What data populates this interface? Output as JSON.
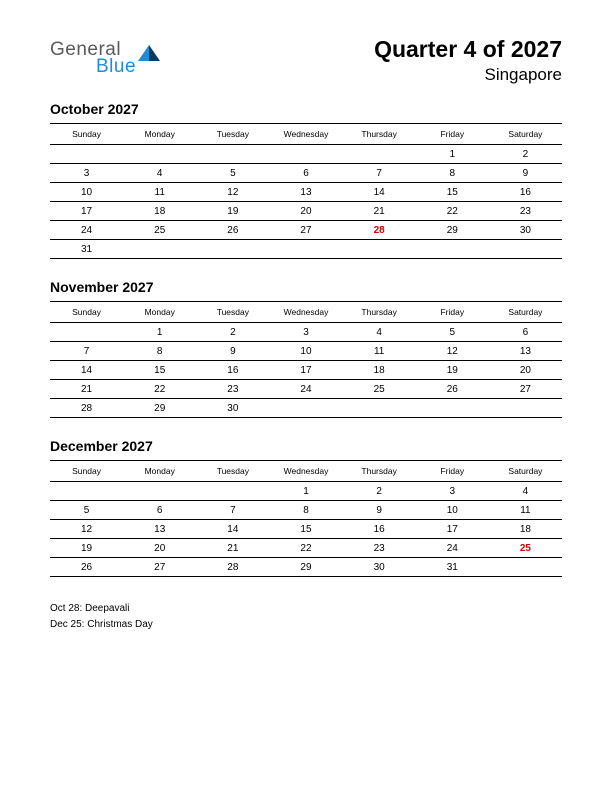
{
  "logo": {
    "text1": "General",
    "text2": "Blue",
    "triangle_color1": "#1f8dd6",
    "triangle_color2": "#0a3d62"
  },
  "header": {
    "title": "Quarter 4 of 2027",
    "subtitle": "Singapore"
  },
  "colors": {
    "background": "#ffffff",
    "text": "#000000",
    "holiday": "#d40000",
    "rule": "#000000",
    "logo_gray": "#5a5a5a",
    "logo_blue": "#1f8dd6"
  },
  "day_headers": [
    "Sunday",
    "Monday",
    "Tuesday",
    "Wednesday",
    "Thursday",
    "Friday",
    "Saturday"
  ],
  "months": [
    {
      "title": "October 2027",
      "weeks": [
        [
          "",
          "",
          "",
          "",
          "",
          "1",
          "2"
        ],
        [
          "3",
          "4",
          "5",
          "6",
          "7",
          "8",
          "9"
        ],
        [
          "10",
          "11",
          "12",
          "13",
          "14",
          "15",
          "16"
        ],
        [
          "17",
          "18",
          "19",
          "20",
          "21",
          "22",
          "23"
        ],
        [
          "24",
          "25",
          "26",
          "27",
          "28",
          "29",
          "30"
        ],
        [
          "31",
          "",
          "",
          "",
          "",
          "",
          ""
        ]
      ],
      "holidays": [
        "28"
      ]
    },
    {
      "title": "November 2027",
      "weeks": [
        [
          "",
          "1",
          "2",
          "3",
          "4",
          "5",
          "6"
        ],
        [
          "7",
          "8",
          "9",
          "10",
          "11",
          "12",
          "13"
        ],
        [
          "14",
          "15",
          "16",
          "17",
          "18",
          "19",
          "20"
        ],
        [
          "21",
          "22",
          "23",
          "24",
          "25",
          "26",
          "27"
        ],
        [
          "28",
          "29",
          "30",
          "",
          "",
          "",
          ""
        ]
      ],
      "holidays": []
    },
    {
      "title": "December 2027",
      "weeks": [
        [
          "",
          "",
          "",
          "1",
          "2",
          "3",
          "4"
        ],
        [
          "5",
          "6",
          "7",
          "8",
          "9",
          "10",
          "11"
        ],
        [
          "12",
          "13",
          "14",
          "15",
          "16",
          "17",
          "18"
        ],
        [
          "19",
          "20",
          "21",
          "22",
          "23",
          "24",
          "25"
        ],
        [
          "26",
          "27",
          "28",
          "29",
          "30",
          "31",
          ""
        ]
      ],
      "holidays": [
        "25"
      ]
    }
  ],
  "holiday_list": [
    "Oct 28: Deepavali",
    "Dec 25: Christmas Day"
  ]
}
